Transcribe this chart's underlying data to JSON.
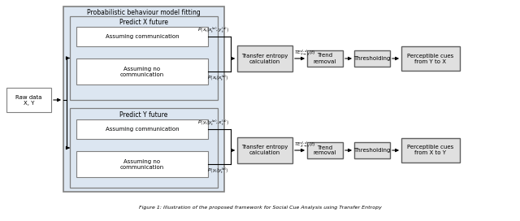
{
  "bg_color": "#ffffff",
  "box_outer_bg": "#dce6f1",
  "box_inner_bg": "#dce6f1",
  "box_white_bg": "#ffffff",
  "box_gray_bg": "#e0e0e0",
  "border_color": "#808080",
  "text_color": "#000000",
  "prob_label": "Probabilistic behaviour model fitting",
  "raw_data_label": "Raw data\nX, Y",
  "predict_x_label": "Predict X future",
  "predict_y_label": "Predict Y future",
  "assume_comm_label": "Assuming communication",
  "assume_no_comm_label": "Assuming no\ncommunication",
  "transfer_entropy_label": "Transfer entropy\ncalculation",
  "trend_removal_label": "Trend\nremoval",
  "thresholding_label": "Thresholding",
  "percept_yx_label": "Perceptible cues\nfrom Y to X",
  "percept_xy_label": "Perceptible cues\nfrom X to Y",
  "te_yx_label": "$TE_{Y\\rightarrow X}^{d,d}(t)$",
  "te_xy_label": "$TE_{X\\rightarrow Y}^{d,d}(t)$",
  "prob_x_comm": "$P\\left(x_t|x_t^{(a)}, y_t^{(a)}\\right)$",
  "prob_x_nocomm": "$P\\left(x_t|x_t^{(a)}\\right)$",
  "prob_y_comm": "$P\\left(y_t|y_t^{(a)}, x_t^{(a)}\\right)$",
  "prob_y_nocomm": "$P\\left(y_t|y_t^{(a)}\\right)$",
  "caption": "Figure 1: Illustration of the proposed framework with Social Cue Analysis using Transfer Entropy"
}
